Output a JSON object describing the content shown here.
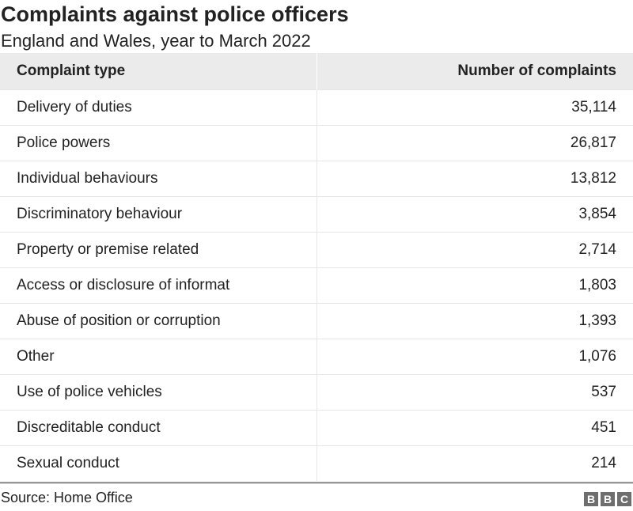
{
  "header": {
    "title": "Complaints against police officers",
    "subtitle": "England and Wales, year to March 2022"
  },
  "chart_data": {
    "type": "table",
    "columns": [
      "Complaint type",
      "Number of complaints"
    ],
    "rows": [
      {
        "type": "Delivery of duties",
        "count": "35,114"
      },
      {
        "type": "Police powers",
        "count": "26,817"
      },
      {
        "type": "Individual behaviours",
        "count": "13,812"
      },
      {
        "type": "Discriminatory behaviour",
        "count": "3,854"
      },
      {
        "type": "Property or premise related",
        "count": "2,714"
      },
      {
        "type": "Access or disclosure of informat",
        "count": "1,803"
      },
      {
        "type": "Abuse of position or corruption",
        "count": "1,393"
      },
      {
        "type": "Other",
        "count": "1,076"
      },
      {
        "type": "Use of police vehicles",
        "count": "537"
      },
      {
        "type": "Discreditable conduct",
        "count": "451"
      },
      {
        "type": "Sexual conduct",
        "count": "214"
      }
    ],
    "values": [
      35114,
      26817,
      13812,
      3854,
      2714,
      1803,
      1393,
      1076,
      537,
      451,
      214
    ]
  },
  "footer": {
    "source": "Source: Home Office",
    "logo_letters": [
      "B",
      "B",
      "C"
    ]
  },
  "colors": {
    "header_bg": "#ebebeb",
    "text": "#222222",
    "grid": "#e6e6e6",
    "logo": "#6e6e6e"
  }
}
